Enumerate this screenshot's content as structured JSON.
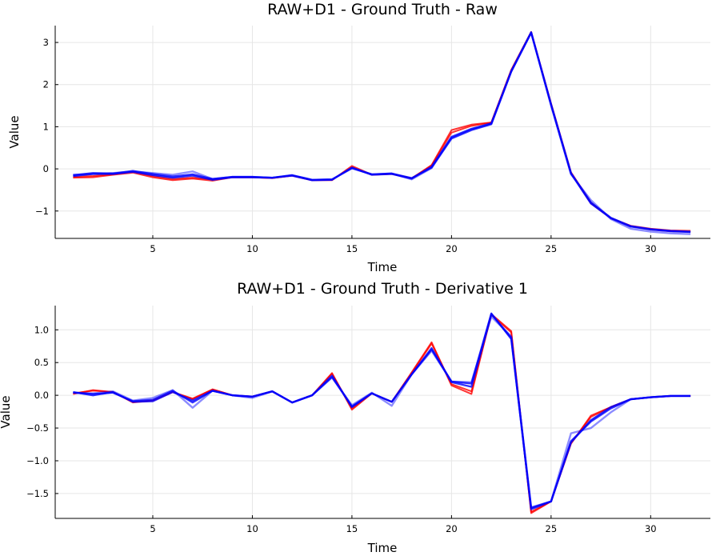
{
  "chart_data": [
    {
      "type": "line",
      "title": "RAW+D1 - Ground Truth - Raw",
      "xlabel": "Time",
      "ylabel": "Value",
      "xlim": [
        0.1,
        33
      ],
      "ylim": [
        -1.65,
        3.4
      ],
      "xticks": [
        5,
        10,
        15,
        20,
        25,
        30
      ],
      "yticks": [
        -1,
        0,
        1,
        2,
        3
      ],
      "ytick_labels": [
        "−1",
        "0",
        "1",
        "2",
        "3"
      ],
      "grid": true,
      "legend": "none",
      "x": [
        1,
        2,
        3,
        4,
        5,
        6,
        7,
        8,
        9,
        10,
        11,
        12,
        13,
        14,
        15,
        16,
        17,
        18,
        19,
        20,
        21,
        22,
        23,
        24,
        25,
        26,
        27,
        28,
        29,
        30,
        31,
        32
      ],
      "series": [
        {
          "color": "#ff0000",
          "values": [
            -0.21,
            -0.2,
            -0.14,
            -0.09,
            -0.2,
            -0.27,
            -0.23,
            -0.28,
            -0.2,
            -0.2,
            -0.22,
            -0.16,
            -0.27,
            -0.27,
            0.07,
            -0.14,
            -0.12,
            -0.23,
            0.09,
            0.92,
            1.05,
            1.1,
            2.35,
            3.25,
            1.55,
            -0.08,
            -0.8,
            -1.17,
            -1.35,
            -1.42,
            -1.46,
            -1.47
          ]
        },
        {
          "color": "#ff0000",
          "values": [
            -0.19,
            -0.17,
            -0.13,
            -0.07,
            -0.17,
            -0.24,
            -0.21,
            -0.25,
            -0.2,
            -0.2,
            -0.22,
            -0.16,
            -0.27,
            -0.26,
            0.04,
            -0.14,
            -0.12,
            -0.22,
            0.08,
            0.86,
            1.02,
            1.1,
            2.34,
            3.24,
            1.54,
            -0.1,
            -0.82,
            -1.17,
            -1.36,
            -1.44,
            -1.48,
            -1.49
          ]
        },
        {
          "color": "#0000ff",
          "values": [
            -0.17,
            -0.12,
            -0.12,
            -0.07,
            -0.15,
            -0.21,
            -0.16,
            -0.26,
            -0.2,
            -0.2,
            -0.21,
            -0.16,
            -0.27,
            -0.26,
            0.03,
            -0.14,
            -0.12,
            -0.23,
            0.05,
            0.76,
            0.95,
            1.08,
            2.32,
            3.24,
            1.53,
            -0.1,
            -0.8,
            -1.16,
            -1.36,
            -1.43,
            -1.47,
            -1.49
          ]
        },
        {
          "color": "#0000ff",
          "values": [
            -0.15,
            -0.1,
            -0.11,
            -0.05,
            -0.12,
            -0.18,
            -0.13,
            -0.24,
            -0.19,
            -0.19,
            -0.21,
            -0.15,
            -0.26,
            -0.25,
            0.02,
            -0.13,
            -0.11,
            -0.22,
            0.03,
            0.72,
            0.92,
            1.06,
            2.31,
            3.23,
            1.52,
            -0.11,
            -0.82,
            -1.17,
            -1.37,
            -1.44,
            -1.48,
            -1.5
          ]
        },
        {
          "color": "#0000ff",
          "values": [
            -0.14,
            -0.12,
            -0.1,
            -0.06,
            -0.1,
            -0.14,
            -0.06,
            -0.24,
            -0.19,
            -0.19,
            -0.21,
            -0.15,
            -0.26,
            -0.25,
            0.01,
            -0.13,
            -0.11,
            -0.25,
            0.02,
            0.74,
            0.94,
            1.07,
            2.31,
            3.24,
            1.5,
            -0.13,
            -0.74,
            -1.19,
            -1.42,
            -1.49,
            -1.53,
            -1.55
          ]
        }
      ]
    },
    {
      "type": "line",
      "title": "RAW+D1 - Ground Truth - Derivative 1",
      "xlabel": "Time",
      "ylabel": "Value",
      "xlim": [
        0.1,
        33
      ],
      "ylim": [
        -1.88,
        1.37
      ],
      "xticks": [
        5,
        10,
        15,
        20,
        25,
        30
      ],
      "yticks": [
        -1.5,
        -1.0,
        -0.5,
        0.0,
        0.5,
        1.0
      ],
      "ytick_labels": [
        "−1.5",
        "−1.0",
        "−0.5",
        "0.0",
        "0.5",
        "1.0"
      ],
      "grid": true,
      "legend": "none",
      "x": [
        1,
        2,
        3,
        4,
        5,
        6,
        7,
        8,
        9,
        10,
        11,
        12,
        13,
        14,
        15,
        16,
        17,
        18,
        19,
        20,
        21,
        22,
        23,
        24,
        25,
        26,
        27,
        28,
        29,
        30,
        31,
        32
      ],
      "series": [
        {
          "color": "#ff0000",
          "values": [
            0.02,
            0.08,
            0.05,
            -0.11,
            -0.08,
            0.05,
            -0.05,
            0.09,
            0.0,
            -0.02,
            0.06,
            -0.11,
            0.0,
            0.34,
            -0.22,
            0.03,
            -0.1,
            0.35,
            0.81,
            0.15,
            0.02,
            1.24,
            0.98,
            -1.8,
            -1.62,
            -0.74,
            -0.31,
            -0.18,
            -0.06,
            -0.03,
            -0.01,
            -0.01
          ]
        },
        {
          "color": "#ff0000",
          "values": [
            0.03,
            0.07,
            0.05,
            -0.1,
            -0.08,
            0.05,
            -0.06,
            0.09,
            0.0,
            -0.02,
            0.06,
            -0.11,
            0.0,
            0.33,
            -0.2,
            0.03,
            -0.1,
            0.34,
            0.79,
            0.17,
            0.06,
            1.23,
            0.96,
            -1.78,
            -1.62,
            -0.73,
            -0.33,
            -0.18,
            -0.06,
            -0.03,
            -0.01,
            -0.01
          ]
        },
        {
          "color": "#0000ff",
          "values": [
            0.05,
            0.0,
            0.05,
            -0.1,
            -0.09,
            0.05,
            -0.08,
            0.07,
            0.0,
            -0.02,
            0.06,
            -0.11,
            0.0,
            0.3,
            -0.18,
            0.03,
            -0.1,
            0.32,
            0.72,
            0.2,
            0.13,
            1.24,
            0.88,
            -1.74,
            -1.62,
            -0.72,
            -0.38,
            -0.18,
            -0.06,
            -0.03,
            -0.01,
            -0.01
          ]
        },
        {
          "color": "#0000ff",
          "values": [
            0.04,
            0.02,
            0.04,
            -0.09,
            -0.07,
            0.07,
            -0.11,
            0.07,
            0.0,
            -0.02,
            0.06,
            -0.11,
            0.0,
            0.28,
            -0.17,
            0.03,
            -0.1,
            0.32,
            0.7,
            0.21,
            0.18,
            1.25,
            0.86,
            -1.72,
            -1.62,
            -0.7,
            -0.4,
            -0.2,
            -0.06,
            -0.03,
            -0.01,
            -0.01
          ]
        },
        {
          "color": "#0000ff",
          "values": [
            0.04,
            0.03,
            0.06,
            -0.08,
            -0.04,
            0.08,
            -0.19,
            0.07,
            0.0,
            -0.04,
            0.06,
            -0.11,
            0.0,
            0.27,
            -0.15,
            0.04,
            -0.16,
            0.32,
            0.68,
            0.21,
            0.2,
            1.2,
            0.9,
            -1.71,
            -1.62,
            -0.58,
            -0.5,
            -0.26,
            -0.06,
            -0.03,
            -0.01,
            -0.01
          ]
        }
      ]
    }
  ]
}
